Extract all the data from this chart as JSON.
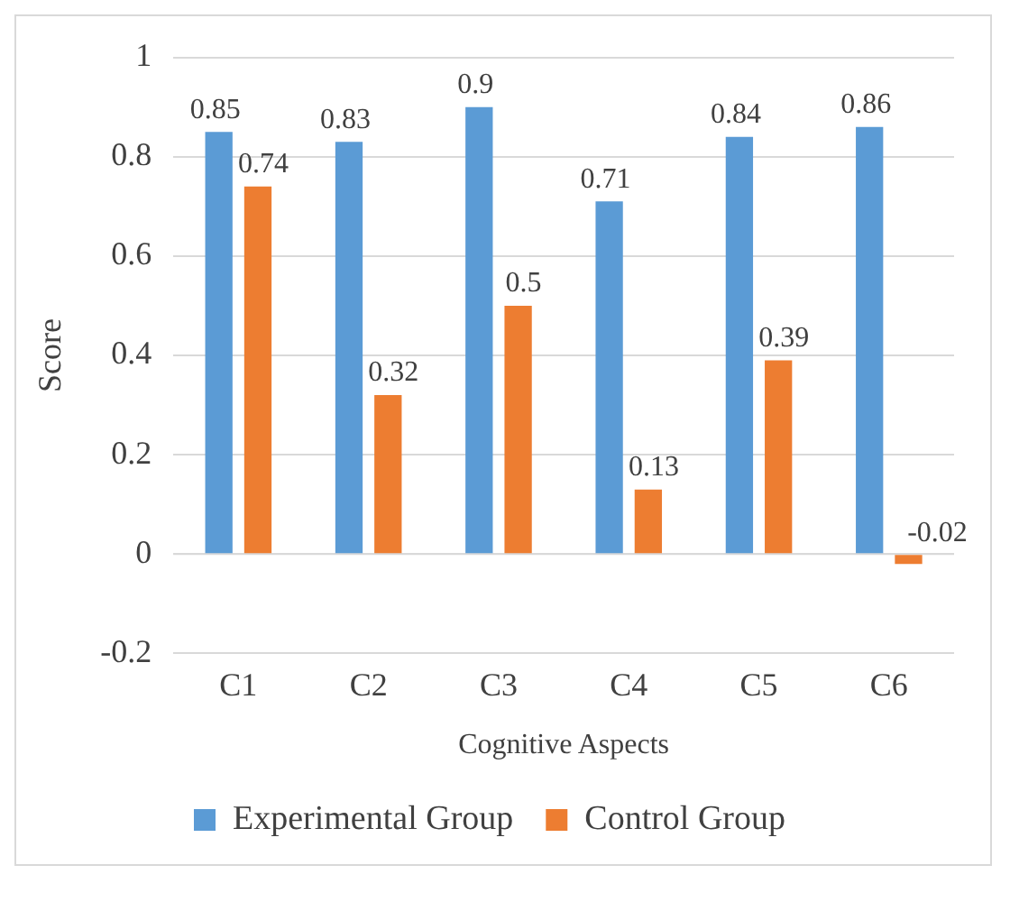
{
  "chart_data": {
    "type": "bar",
    "xlabel": "Cognitive Aspects",
    "ylabel": "Score",
    "categories": [
      "C1",
      "C2",
      "C3",
      "C4",
      "C5",
      "C6"
    ],
    "series": [
      {
        "name": "Experimental Group",
        "color": "#5b9bd5",
        "values": [
          0.85,
          0.83,
          0.9,
          0.71,
          0.84,
          0.86
        ]
      },
      {
        "name": "Control Group",
        "color": "#ed7d31",
        "values": [
          0.74,
          0.32,
          0.5,
          0.13,
          0.39,
          -0.02
        ]
      }
    ],
    "ylim": [
      -0.2,
      1
    ],
    "yticks": [
      -0.2,
      0,
      0.2,
      0.4,
      0.6,
      0.8,
      1
    ],
    "grid": "y",
    "legend": "bottom",
    "data_labels": true
  }
}
